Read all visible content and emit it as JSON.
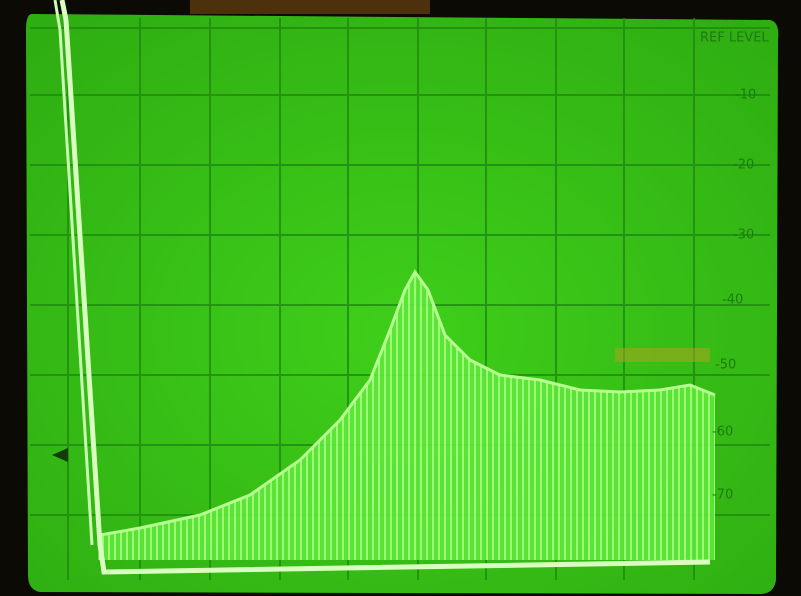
{
  "screen": {
    "ref_label": "REF LEVEL",
    "scale_labels": [
      "-10",
      "-20",
      "-30",
      "-40",
      "-50",
      "-60",
      "-70"
    ]
  }
}
